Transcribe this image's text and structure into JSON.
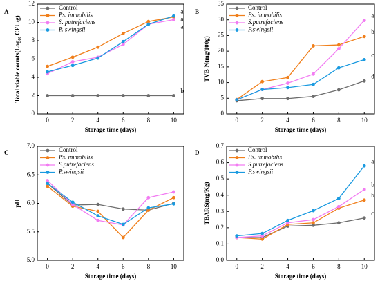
{
  "chart_data": [
    {
      "type": "line",
      "panel_label": "A",
      "y_label": "Total viable counts(Log₁₀ CFU/g)",
      "x_label": "Storage time (days)",
      "x": [
        0,
        2,
        4,
        6,
        8,
        10
      ],
      "xlim": [
        -0.8,
        10.8
      ],
      "xticks": [
        0,
        2,
        4,
        6,
        8,
        10
      ],
      "ylim": [
        0,
        12
      ],
      "yticks": [
        0,
        2,
        4,
        6,
        8,
        10,
        12
      ],
      "legend": "upper left",
      "series": [
        {
          "name": "Control",
          "color": "#6d6d6d",
          "values": [
            2,
            2,
            2,
            2,
            2,
            2
          ],
          "sig_label": "b"
        },
        {
          "name": "Ps. immobilis",
          "color": "#f07f1b",
          "values": [
            5.2,
            6.2,
            7.3,
            8.8,
            10.1,
            10.6
          ],
          "sig_label": "a"
        },
        {
          "name": "S. putrefaciens",
          "color": "#f27cf2",
          "values": [
            4.4,
            5.7,
            6.2,
            7.6,
            9.8,
            10.3
          ],
          "sig_label": "a"
        },
        {
          "name": "P. swingsii",
          "color": "#1a9ae0",
          "values": [
            4.6,
            5.3,
            6.1,
            7.9,
            9.8,
            10.7
          ],
          "sig_label": "a"
        }
      ]
    },
    {
      "type": "line",
      "panel_label": "B",
      "y_label": "TVB-N(mg/100g)",
      "x_label": "Storage time (days)",
      "x": [
        0,
        2,
        4,
        6,
        8,
        10
      ],
      "xlim": [
        -0.8,
        10.8
      ],
      "xticks": [
        0,
        2,
        4,
        6,
        8,
        10
      ],
      "ylim": [
        0,
        35
      ],
      "yticks": [
        0,
        5,
        10,
        15,
        20,
        25,
        30,
        35
      ],
      "legend": "upper left",
      "series": [
        {
          "name": "Control",
          "color": "#6d6d6d",
          "values": [
            4.2,
            4.9,
            4.9,
            5.6,
            7.7,
            10.5
          ],
          "sig_label": "d"
        },
        {
          "name": "Ps. immobilis",
          "color": "#f07f1b",
          "values": [
            4.6,
            10.3,
            11.6,
            21.7,
            22.0,
            24.7
          ],
          "sig_label": "b"
        },
        {
          "name": "S.putrefaciens",
          "color": "#f27cf2",
          "values": [
            4.5,
            7.8,
            9.8,
            12.7,
            20.8,
            29.8
          ],
          "sig_label": "a"
        },
        {
          "name": "P.swingsii",
          "color": "#1a9ae0",
          "values": [
            4.5,
            7.8,
            8.4,
            9.4,
            14.7,
            17.3
          ],
          "sig_label": "c"
        }
      ]
    },
    {
      "type": "line",
      "panel_label": "C",
      "y_label": "pH",
      "x_label": "Storage time (days)",
      "x": [
        0,
        2,
        4,
        6,
        8,
        10
      ],
      "xlim": [
        -0.8,
        10.8
      ],
      "xticks": [
        0,
        2,
        4,
        6,
        8,
        10
      ],
      "ylim": [
        5.0,
        7.0
      ],
      "yticks": [
        {
          "value": 5,
          "label": "5.0"
        },
        5.5,
        {
          "value": 6,
          "label": "6.0"
        },
        6.5,
        {
          "value": 7,
          "label": "7.0"
        }
      ],
      "legend": "upper left",
      "series": [
        {
          "name": "Control",
          "color": "#6d6d6d",
          "values": [
            6.35,
            5.97,
            5.98,
            5.9,
            5.88,
            6.0
          ]
        },
        {
          "name": "Ps. immobilis",
          "color": "#f07f1b",
          "values": [
            6.3,
            5.95,
            5.86,
            5.4,
            5.88,
            6.1
          ]
        },
        {
          "name": "S.putrefaciens",
          "color": "#f27cf2",
          "values": [
            6.4,
            5.98,
            5.7,
            5.62,
            6.1,
            6.2
          ]
        },
        {
          "name": "P.swingsii",
          "color": "#1a9ae0",
          "values": [
            6.35,
            6.02,
            5.78,
            5.63,
            5.92,
            5.99
          ]
        }
      ]
    },
    {
      "type": "line",
      "panel_label": "D",
      "y_label": "TBARS(mg/Kg)",
      "x_label": "Storage time (days)",
      "x": [
        0,
        2,
        4,
        6,
        8,
        10
      ],
      "xlim": [
        -0.8,
        10.8
      ],
      "xticks": [
        0,
        2,
        4,
        6,
        8,
        10
      ],
      "ylim": [
        0,
        0.7
      ],
      "yticks": [
        {
          "value": 0,
          "label": "0.0"
        },
        0.1,
        0.2,
        0.3,
        0.4,
        0.5,
        0.6,
        0.7
      ],
      "legend": "upper left",
      "series": [
        {
          "name": "Control",
          "color": "#6d6d6d",
          "values": [
            0.14,
            0.14,
            0.21,
            0.215,
            0.23,
            0.26
          ],
          "sig_label": "c"
        },
        {
          "name": "Ps. immobilis",
          "color": "#f07f1b",
          "values": [
            0.14,
            0.13,
            0.22,
            0.23,
            0.32,
            0.37
          ],
          "sig_label": "b"
        },
        {
          "name": "S.putrefaciens",
          "color": "#f27cf2",
          "values": [
            0.14,
            0.15,
            0.23,
            0.25,
            0.33,
            0.435
          ],
          "sig_label": "b"
        },
        {
          "name": "P.swingsii",
          "color": "#1a9ae0",
          "values": [
            0.15,
            0.165,
            0.245,
            0.305,
            0.38,
            0.58
          ],
          "sig_label": "a"
        }
      ]
    }
  ]
}
